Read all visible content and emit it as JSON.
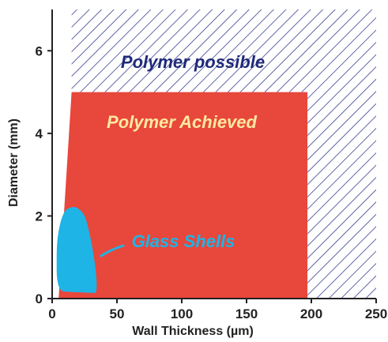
{
  "chart_data": {
    "type": "area",
    "title": "",
    "xlabel": "Wall Thickness (µm)",
    "ylabel": "Diameter (mm)",
    "xlim": [
      0,
      250
    ],
    "ylim": [
      0,
      7
    ],
    "x_ticks": [
      "0",
      "50",
      "100",
      "150",
      "200",
      "250"
    ],
    "y_ticks": [
      "0",
      "2",
      "4",
      "6"
    ],
    "grid": false,
    "regions": [
      {
        "name": "Polymer possible",
        "fill": "hatched",
        "color": "#3a3f8f",
        "label_color": "#1f2a7a",
        "polygon": [
          [
            15,
            7
          ],
          [
            250,
            7
          ],
          [
            250,
            0
          ],
          [
            197,
            0
          ],
          [
            197,
            5
          ],
          [
            15,
            5
          ]
        ]
      },
      {
        "name": "Polymer Achieved",
        "fill": "solid",
        "color": "#e8473c",
        "label_color": "#ffe9a0",
        "polygon": [
          [
            5,
            0
          ],
          [
            197,
            0
          ],
          [
            197,
            5
          ],
          [
            15,
            5
          ]
        ]
      },
      {
        "name": "Glass Shells",
        "fill": "solid",
        "color": "#1eb4e6",
        "label_color": "#1eb4e6",
        "outline": [
          [
            14,
            2.2
          ],
          [
            19,
            2.2
          ],
          [
            25,
            2.0
          ],
          [
            29,
            1.55
          ],
          [
            32,
            1.05
          ],
          [
            34,
            0.55
          ],
          [
            34,
            0.18
          ],
          [
            30,
            0.14
          ],
          [
            22,
            0.15
          ],
          [
            14,
            0.16
          ],
          [
            7,
            0.2
          ],
          [
            4,
            0.45
          ],
          [
            3.5,
            0.9
          ],
          [
            4,
            1.4
          ],
          [
            6.5,
            1.85
          ],
          [
            10,
            2.12
          ]
        ]
      }
    ]
  }
}
